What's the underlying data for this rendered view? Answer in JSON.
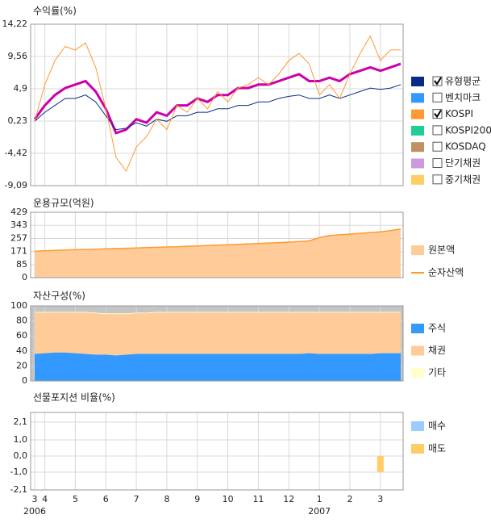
{
  "chart_data": [
    {
      "type": "line",
      "title": "수익률(%)",
      "ylim": [
        -9.09,
        14.22
      ],
      "yticks": [
        {
          "value": 14.22,
          "label": "14,22"
        },
        {
          "value": 9.56,
          "label": "9,56"
        },
        {
          "value": 4.9,
          "label": "4,9"
        },
        {
          "value": 0.23,
          "label": "0,23"
        },
        {
          "value": -4.42,
          "label": "-4,42"
        },
        {
          "value": -9.09,
          "label": "-9,09"
        }
      ],
      "grid": true,
      "series": [
        {
          "color": "#cc00aa",
          "width": 3,
          "values": [
            0.5,
            2.5,
            4.0,
            5.0,
            5.5,
            6.0,
            4.5,
            2.0,
            -1.5,
            -1.0,
            0.5,
            0.0,
            1.5,
            1.0,
            2.5,
            2.5,
            3.5,
            3.0,
            4.0,
            4.0,
            5.0,
            5.0,
            5.5,
            5.5,
            6.0,
            6.5,
            7.0,
            6.0,
            6.0,
            6.5,
            6.0,
            7.0,
            7.5,
            8.0,
            7.5,
            8.0,
            8.5
          ]
        },
        {
          "name": "유형평균",
          "color": "#0a2a88",
          "checked": true,
          "width": 1,
          "values": [
            0.2,
            1.5,
            2.5,
            3.5,
            3.5,
            4.0,
            3.0,
            1.0,
            -1.0,
            -0.8,
            0.0,
            -0.5,
            0.5,
            0.2,
            1.0,
            1.0,
            1.5,
            1.5,
            2.0,
            2.0,
            2.5,
            2.5,
            3.0,
            3.0,
            3.5,
            3.8,
            4.0,
            3.5,
            3.5,
            4.0,
            3.5,
            4.0,
            4.5,
            5.0,
            4.8,
            5.0,
            5.5
          ]
        },
        {
          "name": "벤치마크",
          "color": "#3399ff",
          "checked": false
        },
        {
          "name": "KOSPI",
          "color": "#ff9933",
          "checked": true,
          "width": 1,
          "values": [
            0.2,
            5.5,
            9.0,
            11.0,
            10.5,
            11.5,
            8.0,
            2.0,
            -5.0,
            -7.0,
            -3.5,
            -2.0,
            0.5,
            -1.0,
            2.5,
            1.5,
            3.5,
            2.0,
            4.5,
            3.0,
            5.0,
            5.5,
            6.5,
            5.5,
            7.0,
            9.0,
            10.0,
            8.5,
            4.0,
            5.5,
            3.5,
            7.0,
            10.0,
            12.5,
            9.0,
            10.5,
            10.5
          ]
        },
        {
          "name": "KOSPI200",
          "color": "#22cc99",
          "checked": false
        },
        {
          "name": "KOSDAQ",
          "color": "#c09060",
          "checked": false
        },
        {
          "name": "단기채권",
          "color": "#cc99dd",
          "checked": false
        },
        {
          "name": "중기채권",
          "color": "#ffcc66",
          "checked": false
        }
      ]
    },
    {
      "type": "area",
      "title": "운용규모(억원)",
      "ylim": [
        0,
        429
      ],
      "yticks": [
        0,
        85,
        171,
        257,
        343,
        429
      ],
      "grid": true,
      "series": [
        {
          "name": "원본액",
          "color": "#ffcc99",
          "style": "area",
          "values": [
            172,
            175,
            178,
            180,
            182,
            184,
            186,
            188,
            190,
            192,
            194,
            196,
            198,
            200,
            202,
            205,
            207,
            210,
            212,
            215,
            218,
            220,
            223,
            226,
            229,
            232,
            236,
            240,
            262,
            275,
            280,
            285,
            290,
            295,
            300,
            308,
            318
          ]
        },
        {
          "name": "순자산액",
          "color": "#ff9933",
          "style": "line",
          "values": [
            173,
            176,
            179,
            181,
            183,
            185,
            187,
            189,
            191,
            193,
            195,
            197,
            199,
            201,
            203,
            206,
            208,
            211,
            213,
            216,
            219,
            221,
            224,
            227,
            230,
            233,
            237,
            241,
            263,
            276,
            281,
            286,
            291,
            296,
            301,
            309,
            320
          ]
        }
      ]
    },
    {
      "type": "stacked-area",
      "title": "자산구성(%)",
      "ylim": [
        0,
        100
      ],
      "yticks": [
        0,
        20,
        40,
        60,
        80,
        100
      ],
      "grid": true,
      "series": [
        {
          "name": "주식",
          "color": "#3399ff",
          "values": [
            36,
            37,
            38,
            38,
            37,
            36,
            35,
            35,
            34,
            35,
            36,
            36,
            36,
            36,
            36,
            36,
            36,
            36,
            36,
            36,
            36,
            36,
            36,
            36,
            36,
            36,
            36,
            37,
            36,
            36,
            36,
            36,
            36,
            36,
            37,
            37,
            37
          ]
        },
        {
          "name": "채권",
          "color": "#ffcc99",
          "values": [
            55,
            54,
            53,
            53,
            54,
            55,
            55,
            54,
            55,
            54,
            54,
            54,
            55,
            55,
            55,
            55,
            55,
            55,
            55,
            55,
            55,
            55,
            55,
            55,
            55,
            55,
            55,
            54,
            55,
            55,
            55,
            55,
            55,
            55,
            54,
            54,
            54
          ]
        },
        {
          "name": "기타",
          "color": "#ffffcc",
          "values": [
            1,
            1,
            1,
            1,
            1,
            1,
            1,
            1,
            1,
            1,
            1,
            1,
            1,
            1,
            1,
            1,
            1,
            1,
            1,
            1,
            1,
            1,
            1,
            1,
            1,
            1,
            1,
            1,
            1,
            1,
            1,
            1,
            1,
            1,
            1,
            1,
            1
          ]
        }
      ]
    },
    {
      "type": "bar",
      "title": "선물포지션 비율(%)",
      "ylim": [
        -2.1,
        2.7
      ],
      "yticks": [
        {
          "value": 2.1,
          "label": "2,1"
        },
        {
          "value": 1.0,
          "label": "1,0"
        },
        {
          "value": 0.0,
          "label": "0,0"
        },
        {
          "value": -1.0,
          "label": "-1,0"
        },
        {
          "value": -2.1,
          "label": "-2,1"
        }
      ],
      "grid": true,
      "categories": [
        "3",
        "4",
        null,
        null,
        "5",
        null,
        null,
        "6",
        null,
        null,
        "7",
        null,
        null,
        "8",
        null,
        null,
        "9",
        null,
        null,
        "10",
        null,
        null,
        "11",
        null,
        null,
        "12",
        null,
        null,
        "1",
        null,
        null,
        "2",
        null,
        null,
        "3",
        null,
        null
      ],
      "x_years": [
        "2006",
        null,
        null,
        null,
        null,
        null,
        null,
        null,
        null,
        null,
        null,
        null,
        null,
        null,
        null,
        null,
        null,
        null,
        null,
        null,
        null,
        null,
        null,
        null,
        null,
        null,
        null,
        null,
        "2007",
        null,
        null,
        null,
        null,
        null,
        null,
        null,
        null
      ],
      "series": [
        {
          "name": "매수",
          "color": "#99ccff",
          "values": [
            0,
            0,
            0,
            0,
            0,
            0,
            0,
            0,
            0,
            0,
            0,
            0,
            0,
            0,
            0,
            0,
            0,
            0,
            0,
            0,
            0,
            0,
            0,
            0,
            0,
            0,
            0,
            0,
            0,
            0,
            0,
            0,
            0,
            0,
            0,
            0,
            0
          ]
        },
        {
          "name": "매도",
          "color": "#ffcc66",
          "values": [
            0,
            0,
            0,
            0,
            0,
            0,
            0,
            0,
            0,
            0,
            0,
            0,
            0,
            0,
            0,
            0,
            0,
            0,
            0,
            0,
            0,
            0,
            0,
            0,
            0,
            0,
            0,
            0,
            0,
            0,
            0,
            0,
            0,
            0,
            -1.0,
            0,
            0
          ]
        }
      ]
    }
  ]
}
